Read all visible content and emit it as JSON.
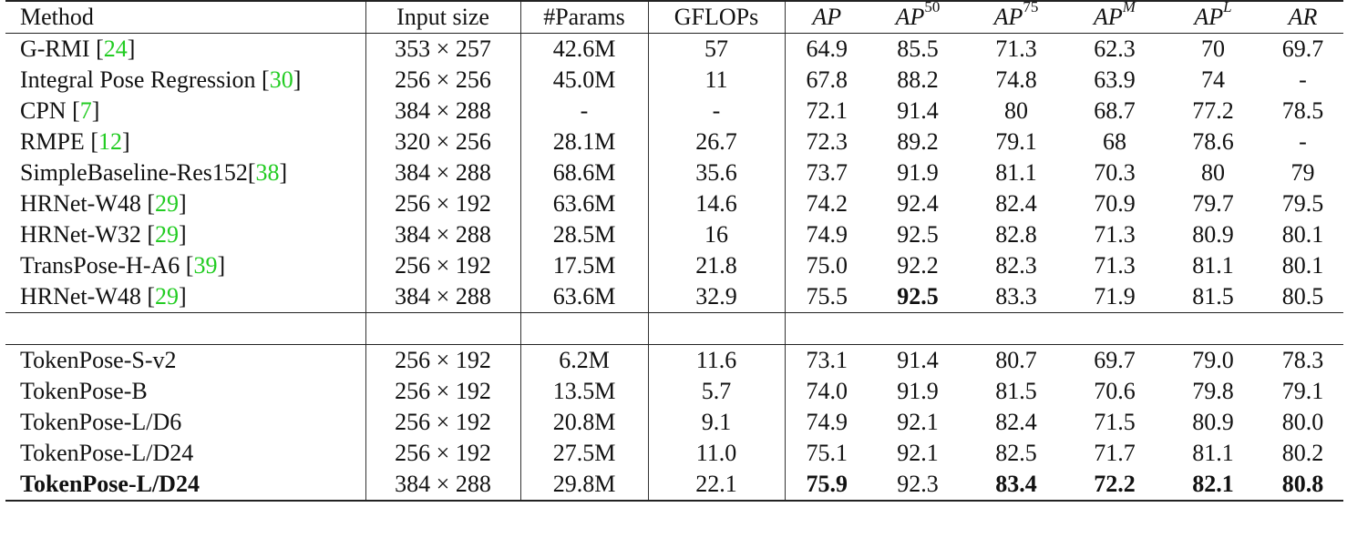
{
  "header": {
    "method": "Method",
    "input_size": "Input size",
    "params": "#Params",
    "gflops": "GFLOPs",
    "ap": "AP",
    "ap50_base": "AP",
    "ap50_sup": "50",
    "ap75_base": "AP",
    "ap75_sup": "75",
    "apm_base": "AP",
    "apm_sup": "M",
    "apl_base": "AP",
    "apl_sup": "L",
    "ar": "AR"
  },
  "rows_group1": [
    {
      "name": "G-RMI ",
      "cite": "24",
      "tail": "",
      "size": "353 × 257",
      "params": "42.6M",
      "gflops": "57",
      "ap": "64.9",
      "ap50": "85.5",
      "ap75": "71.3",
      "apm": "62.3",
      "apl": "70",
      "ar": "69.7"
    },
    {
      "name": "Integral Pose Regression ",
      "cite": "30",
      "tail": "",
      "size": "256 × 256",
      "params": "45.0M",
      "gflops": "11",
      "ap": "67.8",
      "ap50": "88.2",
      "ap75": "74.8",
      "apm": "63.9",
      "apl": "74",
      "ar": "-"
    },
    {
      "name": "CPN ",
      "cite": "7",
      "tail": "",
      "size": "384 × 288",
      "params": "-",
      "gflops": "-",
      "ap": "72.1",
      "ap50": "91.4",
      "ap75": "80",
      "apm": "68.7",
      "apl": "77.2",
      "ar": "78.5"
    },
    {
      "name": "RMPE ",
      "cite": "12",
      "tail": "",
      "size": "320 × 256",
      "params": "28.1M",
      "gflops": "26.7",
      "ap": "72.3",
      "ap50": "89.2",
      "ap75": "79.1",
      "apm": "68",
      "apl": "78.6",
      "ar": "-"
    },
    {
      "name": "SimpleBaseline-Res152",
      "cite": "38",
      "tail": "",
      "size": "384 × 288",
      "params": "68.6M",
      "gflops": "35.6",
      "ap": "73.7",
      "ap50": "91.9",
      "ap75": "81.1",
      "apm": "70.3",
      "apl": "80",
      "ar": "79"
    },
    {
      "name": "HRNet-W48 ",
      "cite": "29",
      "tail": "",
      "size": "256 × 192",
      "params": "63.6M",
      "gflops": "14.6",
      "ap": "74.2",
      "ap50": "92.4",
      "ap75": "82.4",
      "apm": "70.9",
      "apl": "79.7",
      "ar": "79.5"
    },
    {
      "name": "HRNet-W32 ",
      "cite": "29",
      "tail": "",
      "size": "384 × 288",
      "params": "28.5M",
      "gflops": "16",
      "ap": "74.9",
      "ap50": "92.5",
      "ap75": "82.8",
      "apm": "71.3",
      "apl": "80.9",
      "ar": "80.1"
    },
    {
      "name": "TransPose-H-A6 ",
      "cite": "39",
      "tail": "",
      "size": "256 × 192",
      "params": "17.5M",
      "gflops": "21.8",
      "ap": "75.0",
      "ap50": "92.2",
      "ap75": "82.3",
      "apm": "71.3",
      "apl": "81.1",
      "ar": "80.1"
    },
    {
      "name": "HRNet-W48 ",
      "cite": "29",
      "tail": "",
      "size": "384 × 288",
      "params": "63.6M",
      "gflops": "32.9",
      "ap": "75.5",
      "ap50": "92.5",
      "ap75": "83.3",
      "apm": "71.9",
      "apl": "81.5",
      "ar": "80.5"
    }
  ],
  "rows_group2": [
    {
      "name": "TokenPose-S-v2",
      "size": "256 × 192",
      "params": "6.2M",
      "gflops": "11.6",
      "ap": "73.1",
      "ap50": "91.4",
      "ap75": "80.7",
      "apm": "69.7",
      "apl": "79.0",
      "ar": "78.3"
    },
    {
      "name": "TokenPose-B",
      "size": "256 × 192",
      "params": "13.5M",
      "gflops": "5.7",
      "ap": "74.0",
      "ap50": "91.9",
      "ap75": "81.5",
      "apm": "70.6",
      "apl": "79.8",
      "ar": "79.1"
    },
    {
      "name": "TokenPose-L/D6",
      "size": "256 × 192",
      "params": "20.8M",
      "gflops": "9.1",
      "ap": "74.9",
      "ap50": "92.1",
      "ap75": "82.4",
      "apm": "71.5",
      "apl": "80.9",
      "ar": "80.0"
    },
    {
      "name": "TokenPose-L/D24",
      "size": "256 × 192",
      "params": "27.5M",
      "gflops": "11.0",
      "ap": "75.1",
      "ap50": "92.1",
      "ap75": "82.5",
      "apm": "71.7",
      "apl": "81.1",
      "ar": "80.2"
    },
    {
      "name": "TokenPose-L/D24",
      "size": "384 × 288",
      "params": "29.8M",
      "gflops": "22.1",
      "ap": "75.9",
      "ap50": "92.3",
      "ap75": "83.4",
      "apm": "72.2",
      "apl": "82.1",
      "ar": "80.8"
    }
  ]
}
